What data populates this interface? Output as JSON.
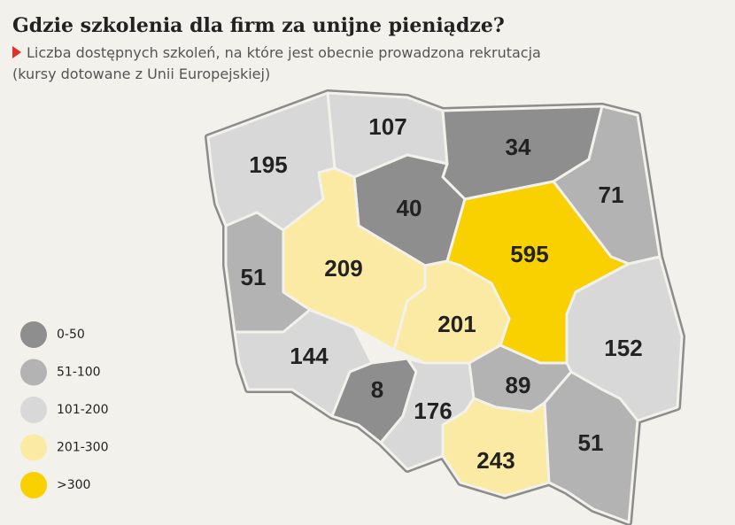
{
  "header": {
    "title": "Gdzie szkolenia dla firm za unijne pieniądze?",
    "subtitle": "Liczba dostępnych szkoleń, na które jest obecnie prowadzona rekrutacja",
    "note": "(kursy dotowane z Unii Europejskiej)"
  },
  "regions": [
    {
      "value": 195,
      "color": "#d8d8d8"
    },
    {
      "value": 107,
      "color": "#d8d8d8"
    },
    {
      "value": 34,
      "color": "#8e8e8e"
    },
    {
      "value": 71,
      "color": "#b3b3b3"
    },
    {
      "value": 40,
      "color": "#8e8e8e"
    },
    {
      "value": 209,
      "color": "#fbeaa3"
    },
    {
      "value": 51,
      "color": "#b3b3b3"
    },
    {
      "value": 595,
      "color": "#f9d000"
    },
    {
      "value": 201,
      "color": "#fbeaa3"
    },
    {
      "value": 152,
      "color": "#d8d8d8"
    },
    {
      "value": 144,
      "color": "#d8d8d8"
    },
    {
      "value": 8,
      "color": "#8e8e8e"
    },
    {
      "value": 176,
      "color": "#d8d8d8"
    },
    {
      "value": 89,
      "color": "#b3b3b3"
    },
    {
      "value": 243,
      "color": "#fbeaa3"
    },
    {
      "value": 51,
      "color": "#b3b3b3"
    }
  ],
  "legend": [
    {
      "label": "0-50",
      "color": "#8e8e8e"
    },
    {
      "label": "51-100",
      "color": "#b3b3b3"
    },
    {
      "label": "101-200",
      "color": "#d8d8d8"
    },
    {
      "label": "201-300",
      "color": "#fbeaa3"
    },
    {
      "label": ">300",
      "color": "#f9d000"
    }
  ]
}
